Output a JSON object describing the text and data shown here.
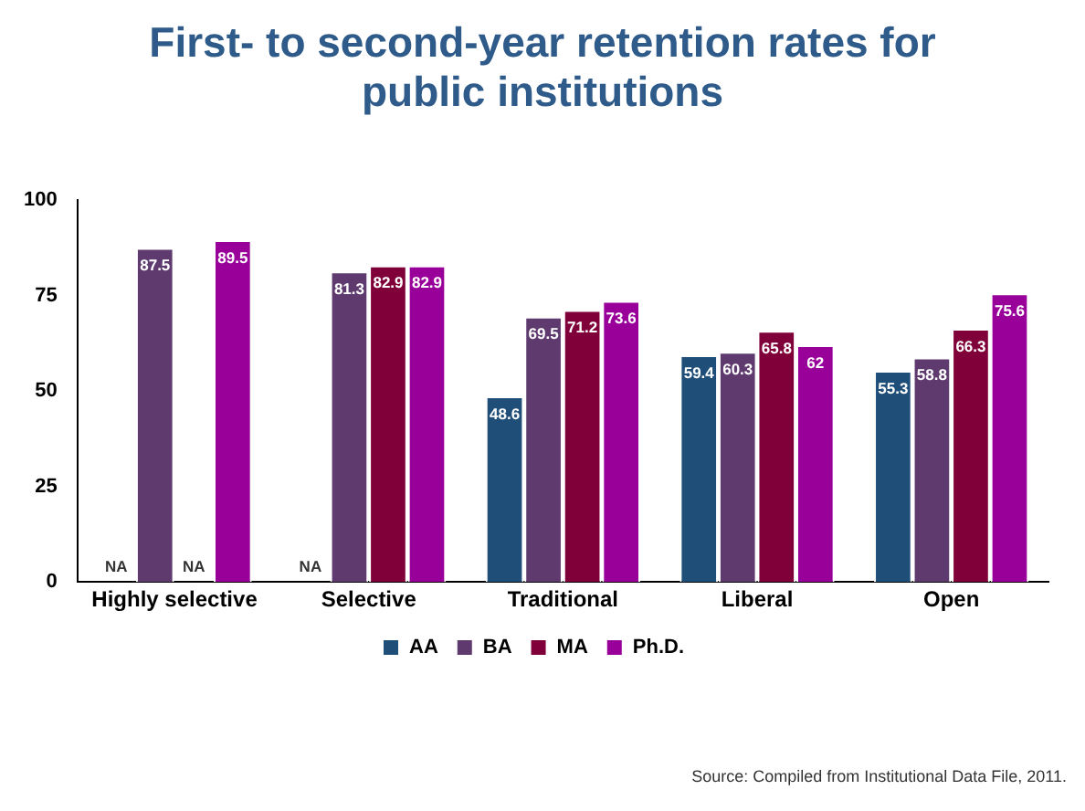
{
  "chart_data": {
    "type": "bar",
    "title": "First- to second-year retention rates for public institutions",
    "categories": [
      "Highly selective",
      "Selective",
      "Traditional",
      "Liberal",
      "Open"
    ],
    "series": [
      {
        "name": "AA",
        "color": "#1f4e79",
        "values": [
          null,
          null,
          48.6,
          59.4,
          55.3
        ],
        "value_labels": [
          "NA",
          "NA",
          "48.6",
          "59.4",
          "55.3"
        ]
      },
      {
        "name": "BA",
        "color": "#5e3a6e",
        "values": [
          87.5,
          81.3,
          69.5,
          60.3,
          58.8
        ],
        "value_labels": [
          "87.5",
          "81.3",
          "69.5",
          "60.3",
          "58.8"
        ]
      },
      {
        "name": "MA",
        "color": "#800039",
        "values": [
          null,
          82.9,
          71.2,
          65.8,
          66.3
        ],
        "value_labels": [
          "NA",
          "82.9",
          "71.2",
          "65.8",
          "66.3"
        ]
      },
      {
        "name": "Ph.D.",
        "color": "#990099",
        "values": [
          89.5,
          82.9,
          73.6,
          62,
          75.6
        ],
        "value_labels": [
          "89.5",
          "82.9",
          "73.6",
          "62",
          "75.6"
        ]
      }
    ],
    "ylim": [
      0,
      100
    ],
    "yticks": [
      0,
      25,
      50,
      75,
      100
    ],
    "grid": false,
    "legend": "bottom",
    "annotations": [
      "Source: Compiled from Institutional Data File, 2011."
    ]
  }
}
